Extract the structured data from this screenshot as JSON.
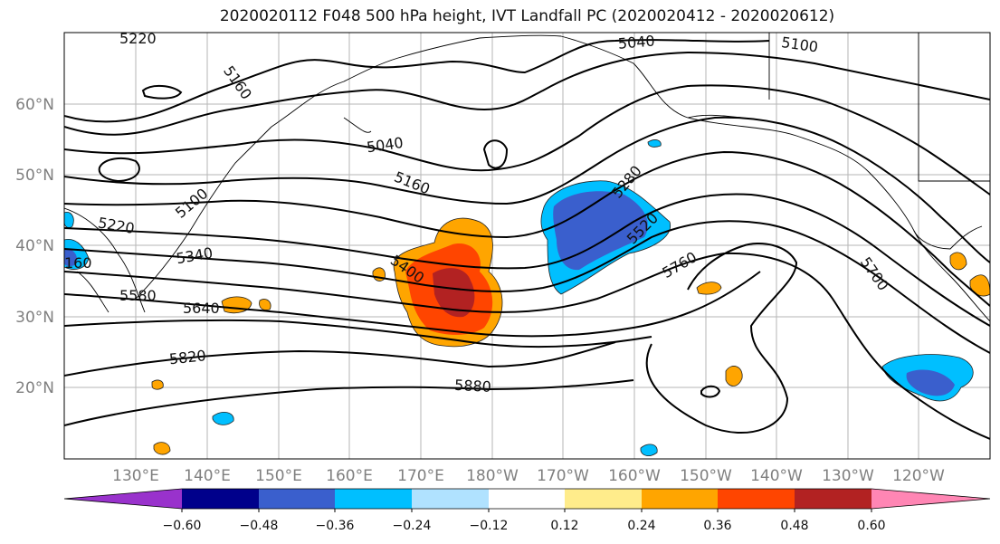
{
  "title": "2020020112 F048 500 hPa height, IVT Landfall PC (2020020412 - 2020020612)",
  "lat_labels": [
    "60°N",
    "50°N",
    "40°N",
    "30°N",
    "20°N"
  ],
  "lon_labels": [
    "130°E",
    "140°E",
    "150°E",
    "160°E",
    "170°E",
    "180°W",
    "170°W",
    "160°W",
    "150°W",
    "140°W",
    "130°W",
    "120°W"
  ],
  "contour_labels": [
    "5220",
    "5160",
    "5040",
    "5100",
    "5040",
    "5160",
    "5100",
    "5220",
    "5340",
    "5400",
    "5280",
    "5520",
    "5760",
    "5700",
    "5580",
    "5640",
    "5820",
    "5880",
    "160"
  ],
  "colorbar": {
    "colors": [
      "#9932cc",
      "#00008b",
      "#3a5fcd",
      "#00bfff",
      "#b0e2ff",
      "#ffffff",
      "#ffec8b",
      "#ffa500",
      "#ff4500",
      "#b22222",
      "#ff86b4"
    ],
    "tick_labels": [
      "−0.60",
      "−0.48",
      "−0.36",
      "−0.24",
      "−0.12",
      "0.12",
      "0.24",
      "0.36",
      "0.48",
      "0.60"
    ]
  }
}
